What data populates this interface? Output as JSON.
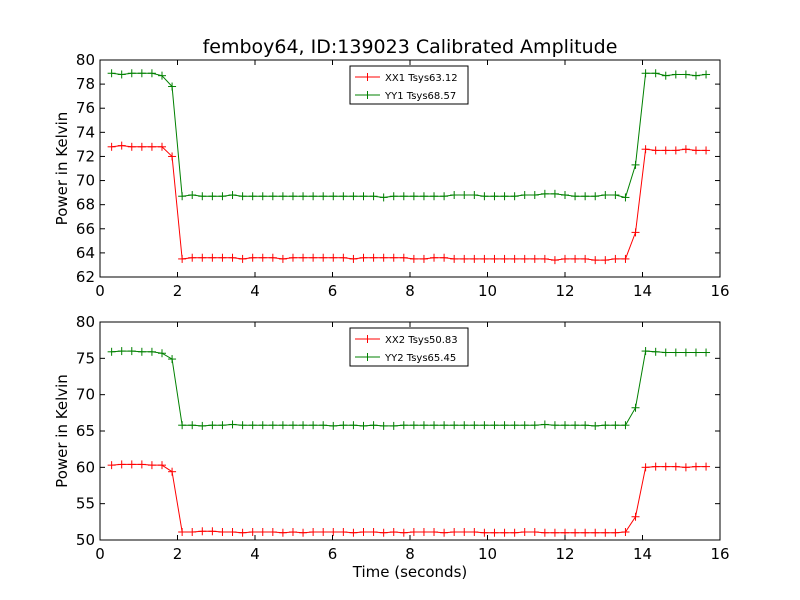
{
  "figure": {
    "title": "femboy64, ID:139023 Calibrated Amplitude"
  },
  "chart_data": [
    {
      "type": "line",
      "title": "femboy64, ID:139023 Calibrated Amplitude",
      "xlabel": "",
      "ylabel": "Power in Kelvin",
      "xlim": [
        0,
        16
      ],
      "ylim": [
        62,
        80
      ],
      "xticks": [
        0,
        2,
        4,
        6,
        8,
        10,
        12,
        14,
        16
      ],
      "yticks": [
        62,
        64,
        66,
        68,
        70,
        72,
        74,
        76,
        78,
        80
      ],
      "grid": false,
      "legend_position": "top-center",
      "x": [
        0.3,
        0.56,
        0.82,
        1.08,
        1.34,
        1.6,
        1.86,
        2.12,
        2.38,
        2.64,
        2.9,
        3.16,
        3.42,
        3.68,
        3.94,
        4.2,
        4.46,
        4.72,
        4.98,
        5.24,
        5.5,
        5.76,
        6.02,
        6.28,
        6.54,
        6.8,
        7.06,
        7.32,
        7.58,
        7.84,
        8.1,
        8.36,
        8.62,
        8.88,
        9.14,
        9.4,
        9.66,
        9.92,
        10.18,
        10.44,
        10.7,
        10.96,
        11.22,
        11.48,
        11.74,
        12.0,
        12.26,
        12.52,
        12.78,
        13.04,
        13.3,
        13.56,
        13.82,
        14.08,
        14.34,
        14.6,
        14.86,
        15.12,
        15.38,
        15.64
      ],
      "series": [
        {
          "name": "XX1 Tsys63.12",
          "color": "#ff0000",
          "values": [
            72.8,
            72.9,
            72.8,
            72.8,
            72.8,
            72.8,
            72.0,
            63.5,
            63.6,
            63.6,
            63.6,
            63.6,
            63.6,
            63.5,
            63.6,
            63.6,
            63.6,
            63.5,
            63.6,
            63.6,
            63.6,
            63.6,
            63.6,
            63.6,
            63.5,
            63.6,
            63.6,
            63.6,
            63.6,
            63.6,
            63.5,
            63.5,
            63.6,
            63.6,
            63.5,
            63.5,
            63.5,
            63.5,
            63.5,
            63.5,
            63.5,
            63.5,
            63.5,
            63.5,
            63.4,
            63.5,
            63.5,
            63.5,
            63.4,
            63.4,
            63.5,
            63.5,
            65.7,
            72.6,
            72.5,
            72.5,
            72.5,
            72.6,
            72.5,
            72.5
          ]
        },
        {
          "name": "YY1 Tsys68.57",
          "color": "#008000",
          "values": [
            78.9,
            78.8,
            78.9,
            78.9,
            78.9,
            78.7,
            77.8,
            68.7,
            68.8,
            68.7,
            68.7,
            68.7,
            68.8,
            68.7,
            68.7,
            68.7,
            68.7,
            68.7,
            68.7,
            68.7,
            68.7,
            68.7,
            68.7,
            68.7,
            68.7,
            68.7,
            68.7,
            68.6,
            68.7,
            68.7,
            68.7,
            68.7,
            68.7,
            68.7,
            68.8,
            68.8,
            68.8,
            68.7,
            68.7,
            68.7,
            68.7,
            68.8,
            68.8,
            68.9,
            68.9,
            68.8,
            68.7,
            68.7,
            68.7,
            68.8,
            68.8,
            68.6,
            71.3,
            78.9,
            78.9,
            78.7,
            78.8,
            78.8,
            78.7,
            78.8
          ]
        }
      ]
    },
    {
      "type": "line",
      "title": "",
      "xlabel": "Time (seconds)",
      "ylabel": "Power in Kelvin",
      "xlim": [
        0,
        16
      ],
      "ylim": [
        50,
        80
      ],
      "xticks": [
        0,
        2,
        4,
        6,
        8,
        10,
        12,
        14,
        16
      ],
      "yticks": [
        50,
        55,
        60,
        65,
        70,
        75,
        80
      ],
      "grid": false,
      "legend_position": "top-center",
      "x": [
        0.3,
        0.56,
        0.82,
        1.08,
        1.34,
        1.6,
        1.86,
        2.12,
        2.38,
        2.64,
        2.9,
        3.16,
        3.42,
        3.68,
        3.94,
        4.2,
        4.46,
        4.72,
        4.98,
        5.24,
        5.5,
        5.76,
        6.02,
        6.28,
        6.54,
        6.8,
        7.06,
        7.32,
        7.58,
        7.84,
        8.1,
        8.36,
        8.62,
        8.88,
        9.14,
        9.4,
        9.66,
        9.92,
        10.18,
        10.44,
        10.7,
        10.96,
        11.22,
        11.48,
        11.74,
        12.0,
        12.26,
        12.52,
        12.78,
        13.04,
        13.3,
        13.56,
        13.82,
        14.08,
        14.34,
        14.6,
        14.86,
        15.12,
        15.38,
        15.64
      ],
      "series": [
        {
          "name": "XX2 Tsys50.83",
          "color": "#ff0000",
          "values": [
            60.3,
            60.4,
            60.4,
            60.4,
            60.3,
            60.3,
            59.4,
            51.1,
            51.1,
            51.2,
            51.2,
            51.1,
            51.1,
            51.0,
            51.1,
            51.1,
            51.1,
            51.0,
            51.1,
            51.0,
            51.1,
            51.1,
            51.1,
            51.1,
            51.0,
            51.1,
            51.1,
            51.0,
            51.1,
            51.0,
            51.1,
            51.1,
            51.1,
            51.0,
            51.1,
            51.1,
            51.1,
            51.0,
            51.0,
            51.0,
            51.0,
            51.1,
            51.1,
            51.0,
            51.0,
            51.0,
            51.0,
            51.0,
            51.0,
            51.0,
            51.0,
            51.1,
            53.2,
            60.0,
            60.1,
            60.1,
            60.1,
            60.0,
            60.1,
            60.1
          ]
        },
        {
          "name": "YY2 Tsys65.45",
          "color": "#008000",
          "values": [
            75.9,
            76.0,
            76.0,
            75.9,
            75.9,
            75.7,
            74.9,
            65.8,
            65.8,
            65.7,
            65.8,
            65.8,
            65.9,
            65.8,
            65.8,
            65.8,
            65.8,
            65.8,
            65.8,
            65.8,
            65.8,
            65.8,
            65.7,
            65.8,
            65.8,
            65.7,
            65.8,
            65.7,
            65.7,
            65.8,
            65.8,
            65.8,
            65.8,
            65.8,
            65.8,
            65.8,
            65.8,
            65.8,
            65.8,
            65.8,
            65.8,
            65.8,
            65.8,
            65.9,
            65.8,
            65.8,
            65.8,
            65.8,
            65.7,
            65.8,
            65.8,
            65.8,
            68.2,
            76.0,
            75.9,
            75.8,
            75.8,
            75.8,
            75.8,
            75.8
          ]
        }
      ]
    }
  ]
}
